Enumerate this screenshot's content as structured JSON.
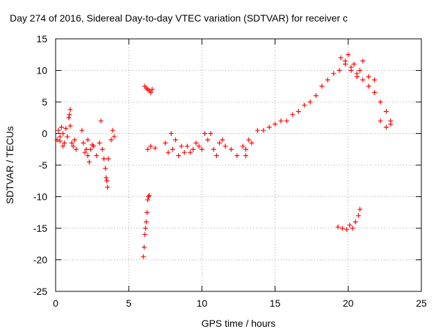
{
  "chart_data": {
    "type": "scatter",
    "title": "Day 274 of 2016, Sidereal Day-to-day VTEC variation (SDTVAR) for receiver c",
    "xlabel": "GPS time / hours",
    "ylabel": "SDTVAR / TECUs",
    "xlim": [
      0,
      25
    ],
    "ylim": [
      -25,
      15
    ],
    "xticks": [
      0,
      5,
      10,
      15,
      20,
      25
    ],
    "yticks": [
      -25,
      -20,
      -15,
      -10,
      -5,
      0,
      5,
      10,
      15
    ],
    "grid": true,
    "marker": "+",
    "color": "#ff0000",
    "series": [
      {
        "name": "SDTVAR",
        "x": [
          0.1,
          0.2,
          0.3,
          0.4,
          0.5,
          0.6,
          0.7,
          0.8,
          0.9,
          1.0,
          1.1,
          1.2,
          1.3,
          1.4,
          0.95,
          1.0,
          0.5,
          0.3,
          1.8,
          1.9,
          2.0,
          2.1,
          2.2,
          2.3,
          2.4,
          2.5,
          2.6,
          2.8,
          3.0,
          3.1,
          3.2,
          3.3,
          3.4,
          3.45,
          3.5,
          3.55,
          3.6,
          3.8,
          3.9,
          4.0,
          2.2,
          6.0,
          6.05,
          6.1,
          6.15,
          6.2,
          6.25,
          6.3,
          6.35,
          6.4,
          6.1,
          6.2,
          6.3,
          6.4,
          6.5,
          6.6,
          6.3,
          6.5,
          6.8,
          7.5,
          7.7,
          7.9,
          8.0,
          8.2,
          8.4,
          8.6,
          8.8,
          9.0,
          9.2,
          9.4,
          9.6,
          9.8,
          10.0,
          10.2,
          10.4,
          10.6,
          10.8,
          11.0,
          11.2,
          11.4,
          11.6,
          12.0,
          12.4,
          12.8,
          13.0,
          13.2,
          13.4,
          13.0,
          13.8,
          14.2,
          14.6,
          15.0,
          15.4,
          15.8,
          16.2,
          16.6,
          17.0,
          17.4,
          17.8,
          18.2,
          18.6,
          19.0,
          19.4,
          19.8,
          20.2,
          20.6,
          21.0,
          21.4,
          21.8,
          22.2,
          22.6,
          22.9,
          19.5,
          19.8,
          20.0,
          20.2,
          20.4,
          20.6,
          20.8,
          21.0,
          21.4,
          21.8,
          22.2,
          22.6,
          22.9,
          19.3,
          19.6,
          19.9,
          20.1,
          20.3,
          20.5,
          20.7,
          20.8
        ],
        "y": [
          -1.0,
          0.5,
          -0.5,
          1.0,
          0.0,
          -1.5,
          0.8,
          -0.5,
          2.5,
          3.8,
          -1.5,
          -2.0,
          -1.0,
          -2.5,
          3.0,
          1.2,
          -2.0,
          -1.2,
          0.5,
          -1.5,
          -3.0,
          -2.5,
          -1.0,
          -4.5,
          -2.5,
          -1.8,
          -2.0,
          -3.5,
          -1.5,
          2.0,
          -2.5,
          -4.0,
          -5.5,
          -7.0,
          -7.5,
          -8.5,
          -4.0,
          -1.0,
          0.5,
          -0.5,
          -3.5,
          -19.5,
          -18.0,
          -16.0,
          -15.0,
          -14.0,
          -12.5,
          -10.5,
          -10.0,
          -9.8,
          7.5,
          7.2,
          7.0,
          6.8,
          6.5,
          7.0,
          -2.5,
          -2.0,
          -2.3,
          -1.5,
          -3.0,
          0.0,
          -2.5,
          -1.0,
          -3.5,
          -2.0,
          -3.0,
          -2.0,
          -3.0,
          -2.5,
          -1.5,
          -2.0,
          -2.5,
          0.0,
          -1.0,
          0.0,
          -2.5,
          -3.5,
          -1.5,
          -1.0,
          -2.0,
          -2.5,
          -3.5,
          -2.0,
          -2.5,
          -1.0,
          -1.5,
          -3.5,
          0.5,
          0.5,
          1.0,
          1.5,
          2.0,
          2.0,
          3.0,
          3.5,
          4.5,
          5.0,
          6.0,
          7.5,
          8.5,
          9.5,
          10.0,
          11.0,
          10.0,
          9.5,
          8.5,
          7.5,
          6.5,
          5.0,
          3.5,
          2.0,
          12.0,
          11.5,
          12.5,
          10.5,
          11.0,
          9.0,
          10.0,
          11.5,
          9.0,
          8.5,
          2.0,
          1.0,
          1.5,
          -14.8,
          -15.0,
          -15.2,
          -14.5,
          -15.0,
          -14.0,
          -13.0,
          -12.0
        ]
      }
    ]
  }
}
